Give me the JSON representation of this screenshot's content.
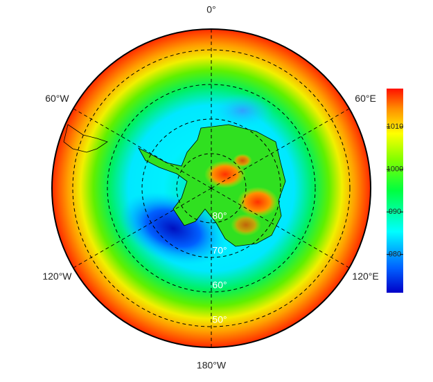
{
  "map": {
    "edge_lat": -44,
    "lon_lines": [
      {
        "value": 0,
        "label": "0°"
      },
      {
        "value": 60,
        "label": "60°E"
      },
      {
        "value": 120,
        "label": "120°E"
      },
      {
        "value": 180,
        "label": "180°W"
      },
      {
        "value": -120,
        "label": "120°W"
      },
      {
        "value": -60,
        "label": "60°W"
      }
    ],
    "lat_circles": [
      {
        "value": -80,
        "label": "80°"
      },
      {
        "value": -70,
        "label": "70°"
      },
      {
        "value": -60,
        "label": "60°"
      },
      {
        "value": -50,
        "label": "50°"
      }
    ],
    "colorbar": {
      "lim": [
        971,
        1019
      ],
      "ticks": [
        980,
        990,
        1000,
        1010
      ]
    }
  }
}
